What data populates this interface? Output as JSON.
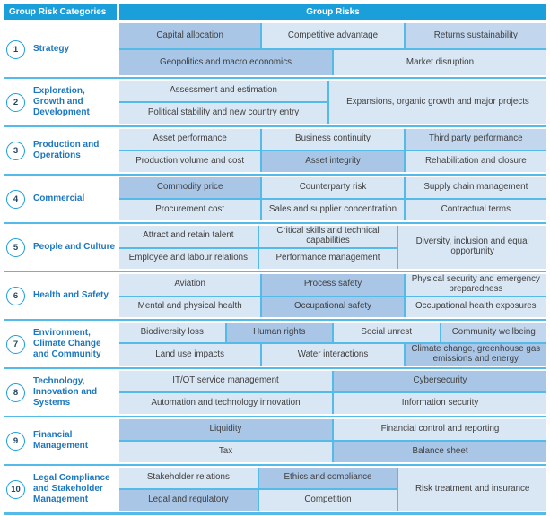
{
  "header": {
    "categories": "Group Risk Categories",
    "risks": "Group Risks"
  },
  "colors": {
    "header_bg": "#1b9fdb",
    "header_text": "#ffffff",
    "light": "#d9e6f3",
    "mid": "#c2d7ee",
    "medium": "#a9c6e6",
    "line": "#54bbe8",
    "category_text": "#1d77bd",
    "number_text": "#24455f",
    "cell_text": "#3f3f3f"
  },
  "groups": [
    {
      "number": "1",
      "label": "Strategy",
      "rows": [
        {
          "cells": [
            {
              "label": "Capital allocation",
              "shade": "medium"
            },
            {
              "label": "Competitive advantage",
              "shade": "light"
            },
            {
              "label": "Returns sustainability",
              "shade": "mid"
            }
          ]
        },
        {
          "cells": [
            {
              "label": "Geopolitics and macro economics",
              "shade": "medium"
            },
            {
              "label": "Market disruption",
              "shade": "light"
            }
          ]
        }
      ]
    },
    {
      "number": "2",
      "label": "Exploration, Growth and Development",
      "rows": [
        {
          "cells": [
            {
              "label": "Assessment and estimation",
              "shade": "light"
            }
          ]
        },
        {
          "cells": [
            {
              "label": "Political stability and new country entry",
              "shade": "light"
            }
          ]
        }
      ],
      "span": {
        "label": "Expansions, organic growth and major projects",
        "shade": "light"
      }
    },
    {
      "number": "3",
      "label": "Production and Operations",
      "rows": [
        {
          "cells": [
            {
              "label": "Asset performance",
              "shade": "light"
            },
            {
              "label": "Business continuity",
              "shade": "light"
            },
            {
              "label": "Third party performance",
              "shade": "mid"
            }
          ]
        },
        {
          "cells": [
            {
              "label": "Production volume and cost",
              "shade": "light"
            },
            {
              "label": "Asset integrity",
              "shade": "medium"
            },
            {
              "label": "Rehabilitation and closure",
              "shade": "light"
            }
          ]
        }
      ]
    },
    {
      "number": "4",
      "label": "Commercial",
      "rows": [
        {
          "cells": [
            {
              "label": "Commodity price",
              "shade": "medium"
            },
            {
              "label": "Counterparty risk",
              "shade": "light"
            },
            {
              "label": "Supply chain management",
              "shade": "light"
            }
          ]
        },
        {
          "cells": [
            {
              "label": "Procurement cost",
              "shade": "light"
            },
            {
              "label": "Sales and supplier concentration",
              "shade": "light"
            },
            {
              "label": "Contractual terms",
              "shade": "light"
            }
          ]
        }
      ]
    },
    {
      "number": "5",
      "label": "People and Culture",
      "rows": [
        {
          "cells": [
            {
              "label": "Attract and retain talent",
              "shade": "light"
            },
            {
              "label": "Critical skills and technical capabilities",
              "shade": "light"
            }
          ]
        },
        {
          "cells": [
            {
              "label": "Employee and labour relations",
              "shade": "light"
            },
            {
              "label": "Performance management",
              "shade": "light"
            }
          ]
        }
      ],
      "span": {
        "label": "Diversity, inclusion and equal opportunity",
        "shade": "light"
      }
    },
    {
      "number": "6",
      "label": "Health and Safety",
      "rows": [
        {
          "cells": [
            {
              "label": "Aviation",
              "shade": "light"
            },
            {
              "label": "Process safety",
              "shade": "medium"
            },
            {
              "label": "Physical security and emergency preparedness",
              "shade": "light"
            }
          ]
        },
        {
          "cells": [
            {
              "label": "Mental and physical health",
              "shade": "light"
            },
            {
              "label": "Occupational safety",
              "shade": "medium"
            },
            {
              "label": "Occupational health exposures",
              "shade": "light"
            }
          ]
        }
      ]
    },
    {
      "number": "7",
      "label": "Environment, Climate Change and Community",
      "rows": [
        {
          "cells": [
            {
              "label": "Biodiversity loss",
              "shade": "light"
            },
            {
              "label": "Human rights",
              "shade": "medium"
            },
            {
              "label": "Social unrest",
              "shade": "light"
            },
            {
              "label": "Community wellbeing",
              "shade": "mid"
            }
          ]
        },
        {
          "cells": [
            {
              "label": "Land use impacts",
              "shade": "light"
            },
            {
              "label": "Water interactions",
              "shade": "light"
            },
            {
              "label": "Climate change, greenhouse gas emissions and energy",
              "shade": "medium"
            }
          ]
        }
      ]
    },
    {
      "number": "8",
      "label": "Technology, Innovation and Systems",
      "rows": [
        {
          "cells": [
            {
              "label": "IT/OT service management",
              "shade": "light"
            },
            {
              "label": "Cybersecurity",
              "shade": "medium"
            }
          ]
        },
        {
          "cells": [
            {
              "label": "Automation and technology innovation",
              "shade": "light"
            },
            {
              "label": "Information security",
              "shade": "light"
            }
          ]
        }
      ]
    },
    {
      "number": "9",
      "label": "Financial Management",
      "rows": [
        {
          "cells": [
            {
              "label": "Liquidity",
              "shade": "medium"
            },
            {
              "label": "Financial control and reporting",
              "shade": "light"
            }
          ]
        },
        {
          "cells": [
            {
              "label": "Tax",
              "shade": "light"
            },
            {
              "label": "Balance sheet",
              "shade": "medium"
            }
          ]
        }
      ]
    },
    {
      "number": "10",
      "label": "Legal Compliance and Stakeholder Management",
      "rows": [
        {
          "cells": [
            {
              "label": "Stakeholder relations",
              "shade": "light"
            },
            {
              "label": "Ethics and compliance",
              "shade": "medium"
            }
          ]
        },
        {
          "cells": [
            {
              "label": "Legal and regulatory",
              "shade": "medium"
            },
            {
              "label": "Competition",
              "shade": "light"
            }
          ]
        }
      ],
      "span": {
        "label": "Risk treatment and insurance",
        "shade": "light"
      }
    }
  ]
}
